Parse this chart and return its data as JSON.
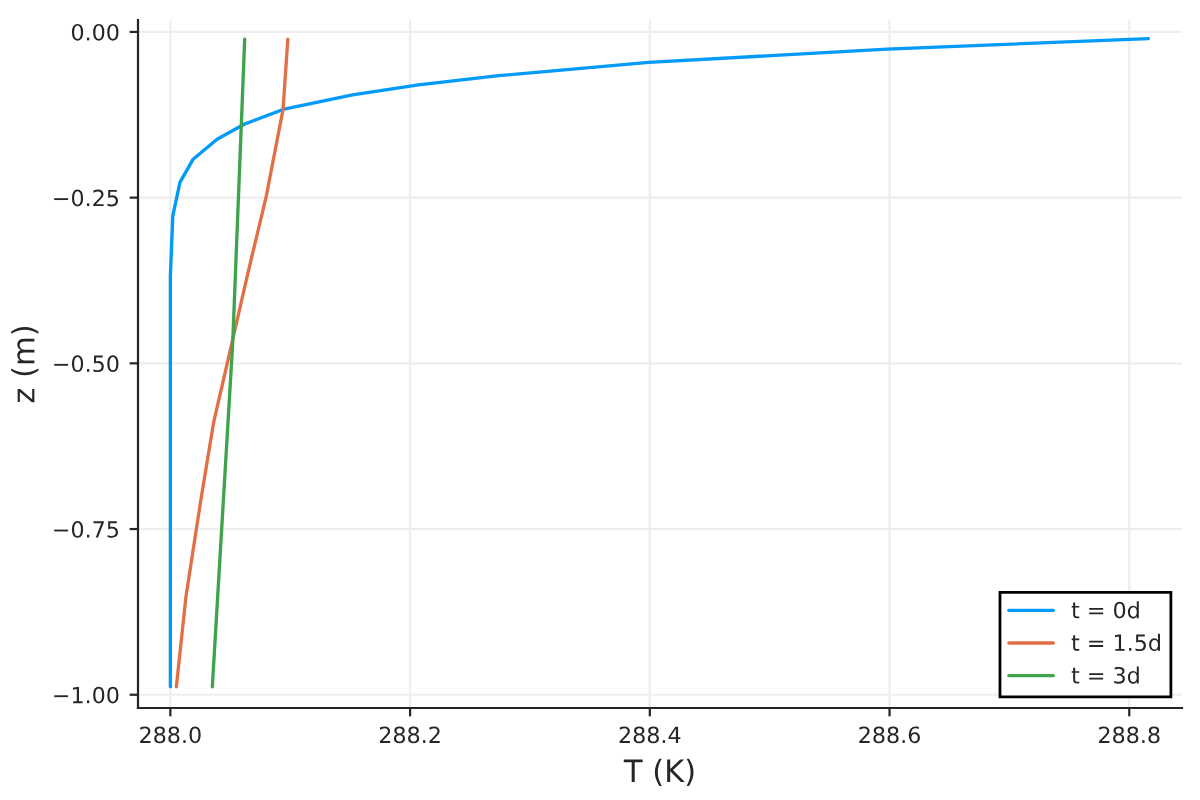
{
  "chart_data": {
    "type": "line",
    "xlabel": "T (K)",
    "ylabel": "z (m)",
    "xlim": [
      287.973,
      288.844
    ],
    "ylim": [
      -1.02,
      0.018
    ],
    "xticks": [
      {
        "value": 288.0,
        "label": "288.0"
      },
      {
        "value": 288.2,
        "label": "288.2"
      },
      {
        "value": 288.4,
        "label": "288.4"
      },
      {
        "value": 288.6,
        "label": "288.6"
      },
      {
        "value": 288.8,
        "label": "288.8"
      }
    ],
    "yticks": [
      {
        "value": 0,
        "label": "0.00"
      },
      {
        "value": -0.25,
        "label": "−0.25"
      },
      {
        "value": -0.5,
        "label": "−0.50"
      },
      {
        "value": -0.75,
        "label": "−0.75"
      },
      {
        "value": -1.0,
        "label": "−1.00"
      }
    ],
    "grid": true,
    "legend": "bottom right",
    "line_style": "solid",
    "marker": "none",
    "series": [
      {
        "name": "t = 0d",
        "color": "#009af9",
        "x": [
          288.0,
          288.0,
          288.002,
          288.008,
          288.019,
          288.039,
          288.062,
          288.094,
          288.152,
          288.207,
          288.274,
          288.399,
          288.598,
          288.816
        ],
        "values": [
          -0.988,
          -0.369,
          -0.278,
          -0.227,
          -0.192,
          -0.162,
          -0.139,
          -0.117,
          -0.095,
          -0.08,
          -0.066,
          -0.046,
          -0.026,
          -0.01
        ]
      },
      {
        "name": "t = 1.5d",
        "color": "#e26f46",
        "x": [
          288.005,
          288.013,
          288.025,
          288.036,
          288.05,
          288.064,
          288.08,
          288.094,
          288.098
        ],
        "values": [
          -0.988,
          -0.852,
          -0.711,
          -0.59,
          -0.48,
          -0.369,
          -0.248,
          -0.117,
          -0.011
        ]
      },
      {
        "name": "t = 3d",
        "color": "#3da44d",
        "x": [
          288.035,
          288.052,
          288.062
        ],
        "values": [
          -0.988,
          -0.47,
          -0.011
        ]
      }
    ]
  }
}
